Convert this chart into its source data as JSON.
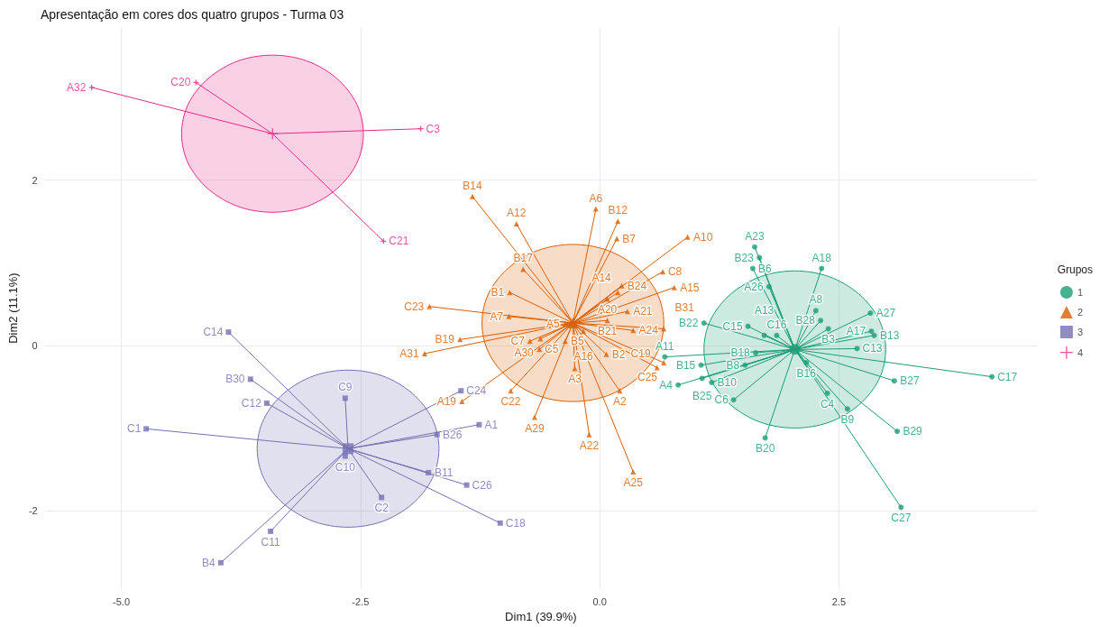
{
  "chart_data": {
    "type": "scatter",
    "title": "Apresentação em cores dos quatro grupos - Turma 03",
    "xlabel": "Dim1 (39.9%)",
    "ylabel": "Dim2 (11.1%)",
    "legend_title": "Grupos",
    "legend": "right",
    "grid": true,
    "xlim": [
      -5.8,
      4.57
    ],
    "xticks": [
      {
        "value": -5,
        "label": "-5.0"
      },
      {
        "value": -2.5,
        "label": "-2.5"
      },
      {
        "value": 0,
        "label": "0.0"
      },
      {
        "value": 2.5,
        "label": "2.5"
      }
    ],
    "ylim": [
      -2.95,
      3.85
    ],
    "yticks": [
      -2,
      0,
      2
    ],
    "series": [
      {
        "name": "1",
        "color": "#1b9e77",
        "marker": "circle",
        "x": [
          1.62,
          1.67,
          1.6,
          1.77,
          2.32,
          2.26,
          2.31,
          2.83,
          2.84,
          2.87,
          2.39,
          2.69,
          1.85,
          1.55,
          1.72,
          1.09,
          0.68,
          1.06,
          1.63,
          1.52,
          1.07,
          0.82,
          1.17,
          1.4,
          1.73,
          2.38,
          2.16,
          2.59,
          3.11,
          3.08,
          4.1,
          3.15
        ],
        "values": [
          1.19,
          1.06,
          0.93,
          0.71,
          0.93,
          0.42,
          0.3,
          0.39,
          0.17,
          0.12,
          0.2,
          -0.04,
          0.12,
          0.23,
          0.12,
          0.27,
          -0.14,
          -0.24,
          -0.09,
          -0.24,
          -0.4,
          -0.48,
          -0.45,
          -0.66,
          -1.12,
          -0.58,
          -0.21,
          -0.77,
          -1.04,
          -0.43,
          -0.38,
          -1.96
        ],
        "value_labels": [
          "A23",
          "B23",
          "B6",
          "A26",
          "A18",
          "A8",
          "B28",
          "A27",
          "A17",
          "B13",
          "B3",
          "C13",
          "C16",
          "C15",
          "A13",
          "B22",
          "A11",
          "B15",
          "B18",
          "B8",
          "B25",
          "A4",
          "B10",
          "C6",
          "B20",
          "C4",
          "B16",
          "B9",
          "B29",
          "B27",
          "C17",
          "C27"
        ]
      },
      {
        "name": "2",
        "color": "#d95f02",
        "marker": "triangle",
        "x": [
          -1.33,
          -0.04,
          0.19,
          -0.87,
          0.18,
          0.92,
          0.66,
          -0.8,
          -0.94,
          -0.95,
          -1.78,
          0.23,
          0.08,
          0.19,
          0.78,
          0.29,
          0.08,
          0.35,
          0.67,
          -0.36,
          -0.62,
          -0.73,
          -1.46,
          -1.83,
          -0.63,
          -0.36,
          -0.17,
          -0.93,
          -1.44,
          -0.68,
          -0.26,
          0.07,
          0.67,
          0.6,
          0.21,
          -0.11,
          0.35
        ],
        "values": [
          1.8,
          1.65,
          1.5,
          1.47,
          1.29,
          1.31,
          0.89,
          0.92,
          0.64,
          0.35,
          0.47,
          0.72,
          0.56,
          0.64,
          0.7,
          0.41,
          0.3,
          0.18,
          0.2,
          0.26,
          0.08,
          0.05,
          0.07,
          -0.1,
          -0.05,
          0.05,
          0.17,
          -0.55,
          -0.68,
          -0.87,
          -0.28,
          -0.11,
          -0.21,
          -0.27,
          -0.55,
          -1.08,
          -1.53
        ],
        "value_labels": [
          "B14",
          "A6",
          "B12",
          "A12",
          "B7",
          "A10",
          "C8",
          "B17",
          "B1",
          "A7",
          "C23",
          "B24",
          "A20",
          "A14",
          "A15",
          "A21",
          "B21",
          "A24",
          "B31",
          "A5",
          "A30",
          "C7",
          "B19",
          "A31",
          "C5",
          "B5",
          "A16",
          "C22",
          "A19",
          "A29",
          "A3",
          "B2",
          "C25",
          "C19",
          "A2",
          "A22",
          "A25"
        ]
      },
      {
        "name": "3",
        "color": "#7570b3",
        "marker": "square",
        "x": [
          -3.88,
          -3.65,
          -3.48,
          -4.74,
          -2.66,
          -2.66,
          -1.45,
          -1.26,
          -1.7,
          -1.79,
          -1.39,
          -1.04,
          -2.28,
          -3.44,
          -3.96
        ],
        "values": [
          0.16,
          -0.41,
          -0.7,
          -1.01,
          -0.64,
          -1.34,
          -0.55,
          -0.96,
          -1.08,
          -1.54,
          -1.69,
          -2.15,
          -1.84,
          -2.25,
          -2.63
        ],
        "value_labels": [
          "C14",
          "B30",
          "C12",
          "C1",
          "C9",
          "C10",
          "C24",
          "A1",
          "B26",
          "B11",
          "C26",
          "C18",
          "C2",
          "C11",
          "B4"
        ]
      },
      {
        "name": "4",
        "color": "#e7298a",
        "marker": "cross",
        "x": [
          -5.31,
          -4.22,
          -1.87,
          -2.26
        ],
        "values": [
          3.12,
          3.18,
          2.62,
          1.26
        ],
        "value_labels": [
          "A32",
          "C20",
          "C3",
          "C21"
        ]
      },
      {
        "color": "#1b9e77",
        "marker": "circle",
        "x": [
          2.04
        ],
        "values": [
          -0.05
        ]
      },
      {
        "color": "#d95f02",
        "marker": "triangle",
        "x": [
          -0.28
        ],
        "values": [
          0.27
        ]
      },
      {
        "color": "#7570b3",
        "marker": "square",
        "x": [
          -2.63
        ],
        "values": [
          -1.25
        ]
      },
      {
        "color": "#e7298a",
        "marker": "cross",
        "x": [
          -3.42
        ],
        "values": [
          2.56
        ]
      },
      {
        "type": "area",
        "color": "#1b9e77",
        "x": [
          2.99,
          2.92,
          2.71,
          2.4,
          2.04,
          1.68,
          1.37,
          1.16,
          1.09,
          1.16,
          1.37,
          1.68,
          2.04,
          2.4,
          2.71,
          2.92
        ],
        "values": [
          -0.05,
          0.31,
          0.62,
          0.83,
          0.9,
          0.83,
          0.62,
          0.31,
          -0.05,
          -0.41,
          -0.72,
          -0.93,
          -1.0,
          -0.93,
          -0.72,
          -0.41
        ]
      },
      {
        "type": "area",
        "color": "#d95f02",
        "x": [
          0.67,
          0.6,
          0.39,
          0.08,
          -0.28,
          -0.64,
          -0.95,
          -1.16,
          -1.23,
          -1.16,
          -0.95,
          -0.64,
          -0.28,
          0.08,
          0.39,
          0.6
        ],
        "values": [
          0.27,
          0.63,
          0.94,
          1.15,
          1.22,
          1.15,
          0.94,
          0.63,
          0.27,
          -0.09,
          -0.4,
          -0.61,
          -0.68,
          -0.61,
          -0.4,
          -0.09
        ]
      },
      {
        "type": "area",
        "color": "#7570b3",
        "x": [
          -1.68,
          -1.75,
          -1.96,
          -2.27,
          -2.63,
          -2.99,
          -3.3,
          -3.51,
          -3.58,
          -3.51,
          -3.3,
          -2.99,
          -2.63,
          -2.27,
          -1.96,
          -1.75
        ],
        "values": [
          -1.25,
          -0.89,
          -0.58,
          -0.37,
          -0.3,
          -0.37,
          -0.58,
          -0.89,
          -1.25,
          -1.61,
          -1.92,
          -2.13,
          -2.2,
          -2.13,
          -1.92,
          -1.61
        ]
      },
      {
        "type": "area",
        "color": "#e7298a",
        "x": [
          -2.47,
          -2.54,
          -2.75,
          -3.06,
          -3.42,
          -3.78,
          -4.09,
          -4.3,
          -4.37,
          -4.3,
          -4.09,
          -3.78,
          -3.42,
          -3.06,
          -2.75,
          -2.54
        ],
        "values": [
          2.56,
          2.92,
          3.23,
          3.44,
          3.51,
          3.44,
          3.23,
          2.92,
          2.56,
          2.2,
          1.89,
          1.68,
          1.61,
          1.68,
          1.89,
          2.2
        ]
      }
    ]
  }
}
